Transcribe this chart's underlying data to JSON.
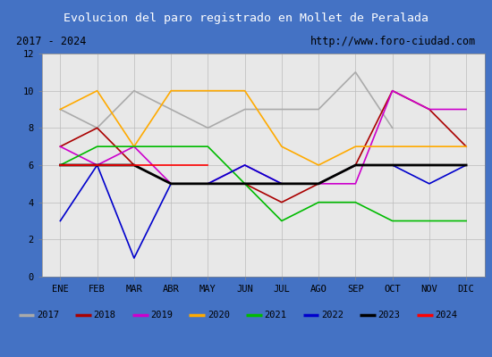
{
  "title": "Evolucion del paro registrado en Mollet de Peralada",
  "subtitle_left": "2017 - 2024",
  "subtitle_right": "http://www.foro-ciudad.com",
  "title_bg_color": "#4472c4",
  "title_text_color": "#ffffff",
  "subtitle_bg_color": "#e0e0e0",
  "chart_bg_color": "#e8e8e8",
  "months": [
    "ENE",
    "FEB",
    "MAR",
    "ABR",
    "MAY",
    "JUN",
    "JUL",
    "AGO",
    "SEP",
    "OCT",
    "NOV",
    "DIC"
  ],
  "ylim": [
    0,
    12
  ],
  "yticks": [
    0,
    2,
    4,
    6,
    8,
    10,
    12
  ],
  "series": {
    "2017": {
      "color": "#aaaaaa",
      "linewidth": 1.2,
      "values": [
        9,
        8,
        10,
        9,
        8,
        9,
        9,
        9,
        11,
        8,
        null,
        null
      ]
    },
    "2018": {
      "color": "#aa0000",
      "linewidth": 1.2,
      "values": [
        7,
        8,
        6,
        5,
        5,
        5,
        4,
        5,
        6,
        10,
        9,
        7
      ]
    },
    "2019": {
      "color": "#cc00cc",
      "linewidth": 1.2,
      "values": [
        7,
        6,
        7,
        5,
        5,
        6,
        5,
        5,
        5,
        10,
        9,
        9
      ]
    },
    "2020": {
      "color": "#ffaa00",
      "linewidth": 1.2,
      "values": [
        9,
        10,
        7,
        10,
        10,
        10,
        7,
        6,
        7,
        7,
        7,
        7
      ]
    },
    "2021": {
      "color": "#00bb00",
      "linewidth": 1.2,
      "values": [
        6,
        7,
        7,
        7,
        7,
        5,
        3,
        4,
        4,
        3,
        3,
        3
      ]
    },
    "2022": {
      "color": "#0000cc",
      "linewidth": 1.2,
      "values": [
        3,
        6,
        1,
        5,
        5,
        6,
        5,
        5,
        6,
        6,
        5,
        6
      ]
    },
    "2023": {
      "color": "#000000",
      "linewidth": 2.0,
      "values": [
        6,
        6,
        6,
        5,
        5,
        5,
        5,
        5,
        6,
        6,
        6,
        6
      ]
    },
    "2024": {
      "color": "#ff0000",
      "linewidth": 1.2,
      "values": [
        6,
        6,
        6,
        6,
        6,
        null,
        null,
        null,
        null,
        null,
        null,
        null
      ]
    }
  },
  "legend_order": [
    "2017",
    "2018",
    "2019",
    "2020",
    "2021",
    "2022",
    "2023",
    "2024"
  ],
  "border_color": "#4472c4",
  "outer_bg": "#4472c4"
}
